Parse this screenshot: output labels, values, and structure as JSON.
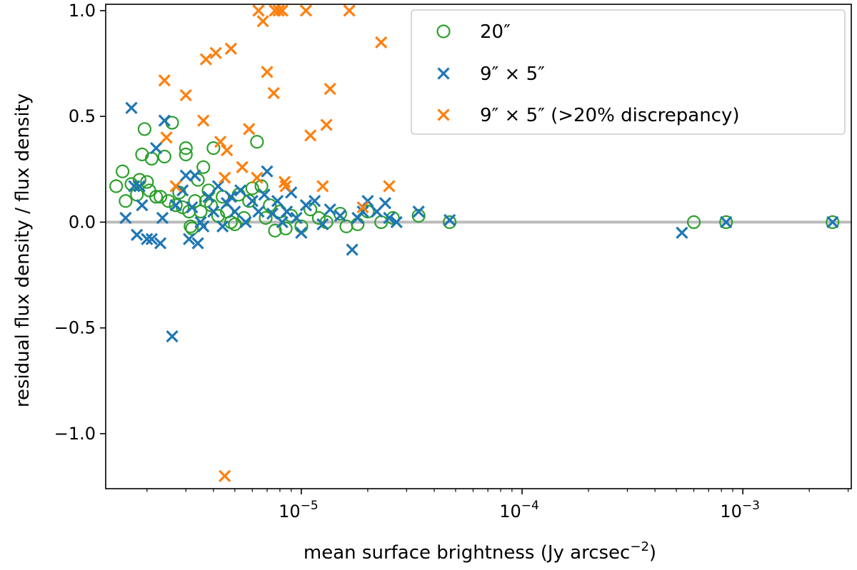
{
  "chart_data": {
    "type": "scatter",
    "title": "",
    "xlabel": "mean surface brightness (Jy arcsec",
    "xlabel_sup": "−2",
    "xlabel_end": ")",
    "ylabel": "residual flux density / flux density",
    "xscale": "log",
    "xlim": [
      1.3e-06,
      0.0031
    ],
    "ylim": [
      -1.26,
      1.03
    ],
    "reference_line": {
      "y": 0,
      "color": "#bbbbbb"
    },
    "x_major_ticks": [
      {
        "value": 1e-05,
        "base": "10",
        "exp": "−5"
      },
      {
        "value": 0.0001,
        "base": "10",
        "exp": "−4"
      },
      {
        "value": 0.001,
        "base": "10",
        "exp": "−3"
      }
    ],
    "y_ticks": [
      {
        "value": 1.0,
        "label": "1.0"
      },
      {
        "value": 0.5,
        "label": "0.5"
      },
      {
        "value": 0.0,
        "label": "0.0"
      },
      {
        "value": -0.5,
        "label": "−0.5"
      },
      {
        "value": -1.0,
        "label": "−1.0"
      }
    ],
    "legend_position": "top-right",
    "series": [
      {
        "name": "20″",
        "marker": "circle",
        "color": "#2ca02c",
        "points": [
          [
            1.45e-06,
            0.17
          ],
          [
            1.55e-06,
            0.24
          ],
          [
            1.6e-06,
            0.1
          ],
          [
            1.7e-06,
            0.18
          ],
          [
            1.8e-06,
            0.13
          ],
          [
            1.85e-06,
            0.2
          ],
          [
            1.9e-06,
            0.32
          ],
          [
            1.95e-06,
            0.44
          ],
          [
            2e-06,
            0.19
          ],
          [
            2.05e-06,
            0.15
          ],
          [
            2.1e-06,
            0.3
          ],
          [
            2.2e-06,
            0.12
          ],
          [
            2.3e-06,
            0.12
          ],
          [
            2.4e-06,
            0.31
          ],
          [
            2.5e-06,
            0.1
          ],
          [
            2.6e-06,
            0.47
          ],
          [
            2.7e-06,
            0.08
          ],
          [
            2.8e-06,
            0.14
          ],
          [
            2.9e-06,
            0.07
          ],
          [
            3e-06,
            0.32
          ],
          [
            3e-06,
            0.35
          ],
          [
            3.1e-06,
            0.05
          ],
          [
            3.15e-06,
            -0.02
          ],
          [
            3.2e-06,
            -0.03
          ],
          [
            3.3e-06,
            0.1
          ],
          [
            3.4e-06,
            0.2
          ],
          [
            3.5e-06,
            0.05
          ],
          [
            3.6e-06,
            0.26
          ],
          [
            3.7e-06,
            0.1
          ],
          [
            3.8e-06,
            0.15
          ],
          [
            3.9e-06,
            0.08
          ],
          [
            4e-06,
            0.35
          ],
          [
            4.2e-06,
            0.03
          ],
          [
            4.4e-06,
            0.12
          ],
          [
            4.6e-06,
            0.05
          ],
          [
            4.8e-06,
            0.0
          ],
          [
            5e-06,
            -0.01
          ],
          [
            5.2e-06,
            0.13
          ],
          [
            5.5e-06,
            0.02
          ],
          [
            5.8e-06,
            0.1
          ],
          [
            6e-06,
            0.16
          ],
          [
            6.3e-06,
            0.38
          ],
          [
            6.6e-06,
            0.17
          ],
          [
            6.9e-06,
            0.02
          ],
          [
            7.2e-06,
            0.08
          ],
          [
            7.6e-06,
            -0.04
          ],
          [
            8e-06,
            0.05
          ],
          [
            8.5e-06,
            -0.03
          ],
          [
            9e-06,
            0.03
          ],
          [
            1e-05,
            -0.02
          ],
          [
            1.1e-05,
            0.06
          ],
          [
            1.2e-05,
            0.02
          ],
          [
            1.3e-05,
            0.0
          ],
          [
            1.5e-05,
            0.04
          ],
          [
            1.6e-05,
            -0.02
          ],
          [
            1.8e-05,
            -0.01
          ],
          [
            2e-05,
            0.05
          ],
          [
            2.3e-05,
            0.0
          ],
          [
            2.6e-05,
            0.02
          ],
          [
            3.4e-05,
            0.03
          ],
          [
            4.7e-05,
            0.0
          ],
          [
            0.0006,
            0.0
          ],
          [
            0.00084,
            0.0
          ],
          [
            0.00255,
            0.0
          ]
        ]
      },
      {
        "name": "9″ × 5″",
        "marker": "x",
        "color": "#1f77b4",
        "points": [
          [
            1.6e-06,
            0.02
          ],
          [
            1.7e-06,
            0.54
          ],
          [
            1.75e-06,
            0.17
          ],
          [
            1.8e-06,
            -0.06
          ],
          [
            1.85e-06,
            0.17
          ],
          [
            1.9e-06,
            0.08
          ],
          [
            2e-06,
            -0.08
          ],
          [
            2.1e-06,
            -0.08
          ],
          [
            2.2e-06,
            0.35
          ],
          [
            2.3e-06,
            -0.1
          ],
          [
            2.35e-06,
            0.02
          ],
          [
            2.4e-06,
            0.48
          ],
          [
            2.6e-06,
            -0.54
          ],
          [
            2.7e-06,
            0.08
          ],
          [
            2.9e-06,
            0.15
          ],
          [
            3e-06,
            0.22
          ],
          [
            3.1e-06,
            -0.08
          ],
          [
            3.2e-06,
            0.07
          ],
          [
            3.3e-06,
            0.22
          ],
          [
            3.4e-06,
            -0.1
          ],
          [
            3.5e-06,
            0.0
          ],
          [
            3.6e-06,
            -0.02
          ],
          [
            3.8e-06,
            0.12
          ],
          [
            4e-06,
            0.05
          ],
          [
            4.2e-06,
            0.17
          ],
          [
            4.4e-06,
            -0.02
          ],
          [
            4.6e-06,
            0.09
          ],
          [
            4.8e-06,
            0.12
          ],
          [
            5e-06,
            0.05
          ],
          [
            5.3e-06,
            0.15
          ],
          [
            5.6e-06,
            0.0
          ],
          [
            6e-06,
            0.1
          ],
          [
            6.4e-06,
            0.05
          ],
          [
            6.8e-06,
            0.13
          ],
          [
            7e-06,
            0.24
          ],
          [
            7.4e-06,
            0.04
          ],
          [
            7.8e-06,
            0.1
          ],
          [
            8.2e-06,
            0.0
          ],
          [
            8.6e-06,
            0.05
          ],
          [
            9e-06,
            0.14
          ],
          [
            9.5e-06,
            0.02
          ],
          [
            1e-05,
            -0.05
          ],
          [
            1.05e-05,
            0.08
          ],
          [
            1.15e-05,
            0.1
          ],
          [
            1.25e-05,
            -0.01
          ],
          [
            1.35e-05,
            0.06
          ],
          [
            1.5e-05,
            0.03
          ],
          [
            1.7e-05,
            -0.13
          ],
          [
            1.8e-05,
            0.02
          ],
          [
            1.9e-05,
            0.05
          ],
          [
            2e-05,
            0.1
          ],
          [
            2.2e-05,
            0.05
          ],
          [
            2.4e-05,
            0.09
          ],
          [
            2.5e-05,
            0.02
          ],
          [
            2.7e-05,
            0.0
          ],
          [
            3.4e-05,
            0.05
          ],
          [
            4.7e-05,
            0.01
          ],
          [
            0.00053,
            -0.05
          ],
          [
            0.00084,
            0.0
          ],
          [
            0.00255,
            0.0
          ]
        ]
      },
      {
        "name": "9″ × 5″ (>20% discrepancy)",
        "marker": "x",
        "color": "#ff7f0e",
        "points": [
          [
            2.4e-06,
            0.67
          ],
          [
            2.45e-06,
            0.4
          ],
          [
            2.7e-06,
            0.17
          ],
          [
            3e-06,
            0.6
          ],
          [
            3.6e-06,
            0.48
          ],
          [
            3.7e-06,
            0.77
          ],
          [
            4.1e-06,
            0.8
          ],
          [
            4.3e-06,
            0.38
          ],
          [
            4.5e-06,
            0.21
          ],
          [
            4.6e-06,
            0.34
          ],
          [
            4.8e-06,
            0.82
          ],
          [
            5.4e-06,
            0.26
          ],
          [
            5.8e-06,
            0.44
          ],
          [
            6.3e-06,
            0.21
          ],
          [
            6.4e-06,
            1.0
          ],
          [
            6.7e-06,
            0.95
          ],
          [
            7e-06,
            0.71
          ],
          [
            7.5e-06,
            0.61
          ],
          [
            7.6e-06,
            1.0
          ],
          [
            7.9e-06,
            1.0
          ],
          [
            8.2e-06,
            1.0
          ],
          [
            8.4e-06,
            0.19
          ],
          [
            8.5e-06,
            0.17
          ],
          [
            1.05e-05,
            1.0
          ],
          [
            1.1e-05,
            0.41
          ],
          [
            1.3e-05,
            0.46
          ],
          [
            1.35e-05,
            0.63
          ],
          [
            1.25e-05,
            0.17
          ],
          [
            1.65e-05,
            1.0
          ],
          [
            1.9e-05,
            0.07
          ],
          [
            2.3e-05,
            0.85
          ],
          [
            2.5e-05,
            0.17
          ],
          [
            4.5e-06,
            -1.2
          ]
        ]
      }
    ]
  }
}
